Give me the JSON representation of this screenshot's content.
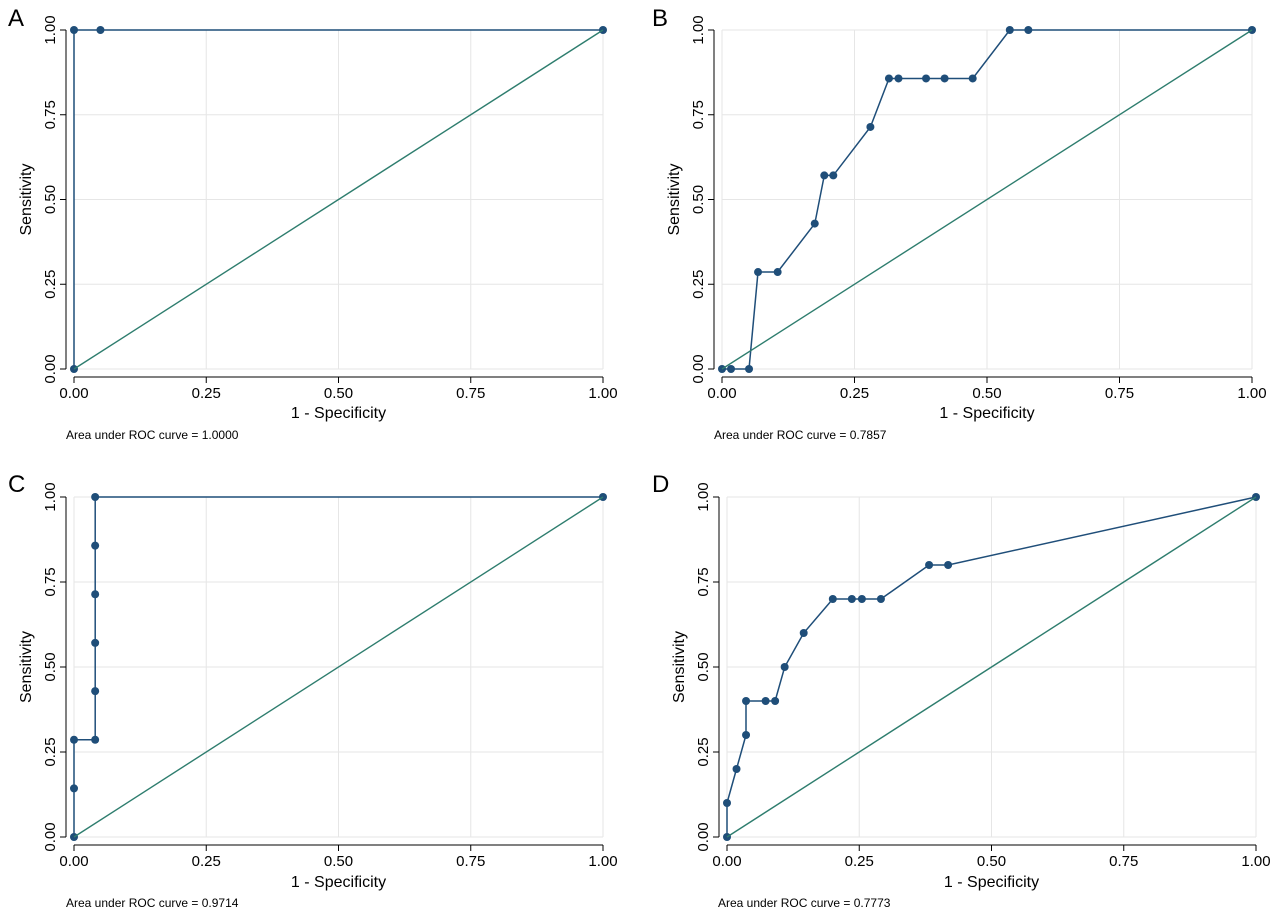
{
  "chart_data": [
    {
      "panel_label": "A",
      "type": "line",
      "xlabel": "1 - Specificity",
      "ylabel": "Sensitivity",
      "xlim": [
        0,
        1
      ],
      "ylim": [
        0,
        1
      ],
      "xticks": [
        "0.00",
        "0.25",
        "0.50",
        "0.75",
        "1.00"
      ],
      "yticks": [
        "0.00",
        "0.25",
        "0.50",
        "0.75",
        "1.00"
      ],
      "grid": true,
      "footnote": "Area under ROC curve = 1.0000",
      "series": [
        {
          "role": "roc",
          "x": [
            0,
            0,
            0.05,
            1
          ],
          "y": [
            0,
            1,
            1,
            1
          ]
        },
        {
          "role": "reference",
          "x": [
            0,
            1
          ],
          "y": [
            0,
            1
          ]
        }
      ]
    },
    {
      "panel_label": "B",
      "type": "line",
      "xlabel": "1 - Specificity",
      "ylabel": "Sensitivity",
      "xlim": [
        0,
        1
      ],
      "ylim": [
        0,
        1
      ],
      "xticks": [
        "0.00",
        "0.25",
        "0.50",
        "0.75",
        "1.00"
      ],
      "yticks": [
        "0.00",
        "0.25",
        "0.50",
        "0.75",
        "1.00"
      ],
      "grid": true,
      "footnote": "Area under ROC curve = 0.7857",
      "series": [
        {
          "role": "roc",
          "x": [
            0,
            0.017,
            0.051,
            0.068,
            0.105,
            0.175,
            0.193,
            0.21,
            0.28,
            0.315,
            0.333,
            0.385,
            0.42,
            0.473,
            0.543,
            0.578,
            1
          ],
          "y": [
            0,
            0,
            0,
            0.286,
            0.286,
            0.429,
            0.571,
            0.571,
            0.714,
            0.857,
            0.857,
            0.857,
            0.857,
            0.857,
            1,
            1,
            1
          ]
        },
        {
          "role": "reference",
          "x": [
            0,
            1
          ],
          "y": [
            0,
            1
          ]
        }
      ]
    },
    {
      "panel_label": "C",
      "type": "line",
      "xlabel": "1 - Specificity",
      "ylabel": "Sensitivity",
      "xlim": [
        0,
        1
      ],
      "ylim": [
        0,
        1
      ],
      "xticks": [
        "0.00",
        "0.25",
        "0.50",
        "0.75",
        "1.00"
      ],
      "yticks": [
        "0.00",
        "0.25",
        "0.50",
        "0.75",
        "1.00"
      ],
      "grid": true,
      "footnote": "Area under ROC curve = 0.9714",
      "series": [
        {
          "role": "roc",
          "x": [
            0,
            0,
            0,
            0.04,
            0.04,
            0.04,
            0.04,
            0.04,
            0.04,
            1
          ],
          "y": [
            0,
            0.143,
            0.286,
            0.286,
            0.429,
            0.571,
            0.714,
            0.857,
            1,
            1
          ]
        },
        {
          "role": "reference",
          "x": [
            0,
            1
          ],
          "y": [
            0,
            1
          ]
        }
      ]
    },
    {
      "panel_label": "D",
      "type": "line",
      "xlabel": "1 - Specificity",
      "ylabel": "Sensitivity",
      "xlim": [
        0,
        1
      ],
      "ylim": [
        0,
        1
      ],
      "xticks": [
        "0.00",
        "0.25",
        "0.50",
        "0.75",
        "1.00"
      ],
      "yticks": [
        "0.00",
        "0.25",
        "0.50",
        "0.75",
        "1.00"
      ],
      "grid": true,
      "footnote": "Area under ROC curve = 0.7773",
      "series": [
        {
          "role": "roc",
          "x": [
            0,
            0,
            0.018,
            0.036,
            0.036,
            0.073,
            0.091,
            0.109,
            0.145,
            0.2,
            0.236,
            0.255,
            0.291,
            0.382,
            0.418,
            1
          ],
          "y": [
            0,
            0.1,
            0.2,
            0.3,
            0.4,
            0.4,
            0.4,
            0.5,
            0.6,
            0.7,
            0.7,
            0.7,
            0.7,
            0.8,
            0.8,
            1
          ]
        },
        {
          "role": "reference",
          "x": [
            0,
            1
          ],
          "y": [
            0,
            1
          ]
        }
      ]
    }
  ],
  "colors": {
    "roc_line": "#1f4e79",
    "reference_line": "#2e7d6e",
    "grid": "#e6e6e6",
    "axis": "#000000"
  }
}
